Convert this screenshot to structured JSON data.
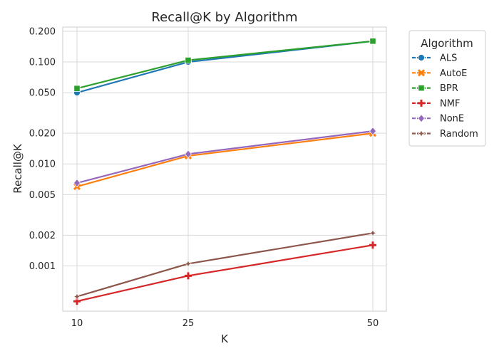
{
  "chart_data": {
    "type": "line",
    "title": "Recall@K by Algorithm",
    "xlabel": "K",
    "ylabel": "Recall@K",
    "x": [
      10,
      25,
      50
    ],
    "x_ticks": [
      "10",
      "25",
      "50"
    ],
    "y_scale": "log",
    "ylim": [
      0.00036,
      0.22
    ],
    "y_ticks": [
      {
        "value": 0.001,
        "label": "0.001"
      },
      {
        "value": 0.002,
        "label": "0.002"
      },
      {
        "value": 0.005,
        "label": "0.005"
      },
      {
        "value": 0.01,
        "label": "0.010"
      },
      {
        "value": 0.02,
        "label": "0.020"
      },
      {
        "value": 0.05,
        "label": "0.050"
      },
      {
        "value": 0.1,
        "label": "0.100"
      },
      {
        "value": 0.2,
        "label": "0.200"
      }
    ],
    "grid": true,
    "legend": {
      "title": "Algorithm",
      "placement": "outside-right"
    },
    "series": [
      {
        "name": "ALS",
        "color": "#1f77b4",
        "marker": "circle",
        "values": [
          0.05,
          0.1,
          0.16
        ]
      },
      {
        "name": "AutoE",
        "color": "#ff7f0e",
        "marker": "x",
        "values": [
          0.006,
          0.012,
          0.02
        ]
      },
      {
        "name": "BPR",
        "color": "#2ca02c",
        "marker": "square",
        "values": [
          0.055,
          0.104,
          0.16
        ]
      },
      {
        "name": "NMF",
        "color": "#d62728",
        "marker": "plus",
        "values": [
          0.00045,
          0.0008,
          0.0016
        ]
      },
      {
        "name": "NonE",
        "color": "#9467bd",
        "marker": "diamond",
        "values": [
          0.0065,
          0.0125,
          0.021
        ]
      },
      {
        "name": "Random",
        "color": "#8c564b",
        "marker": "star",
        "values": [
          0.0005,
          0.00105,
          0.0021
        ]
      }
    ]
  }
}
